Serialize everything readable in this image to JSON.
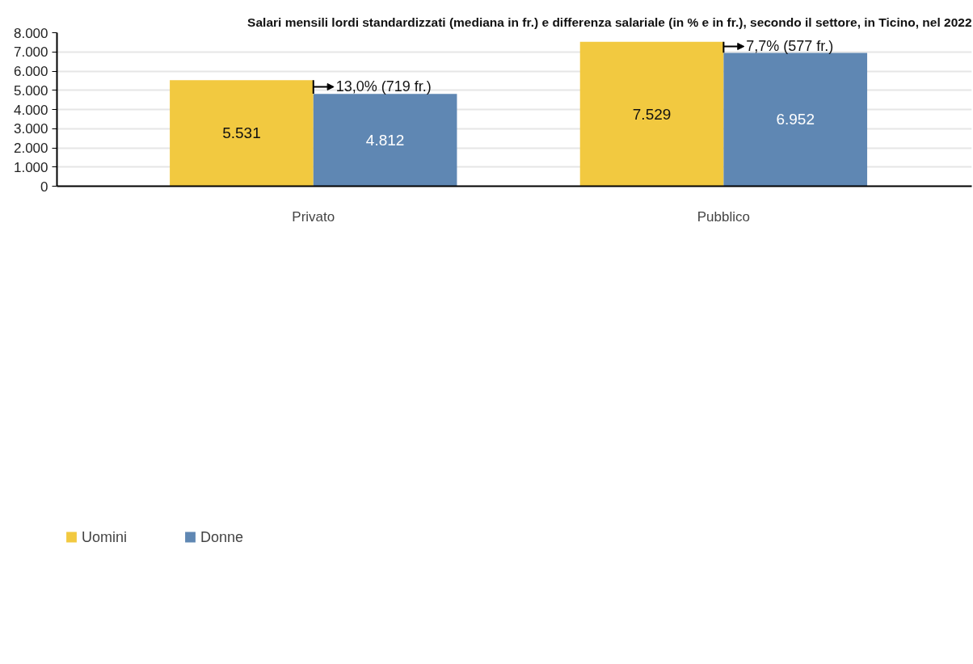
{
  "chart_data": {
    "type": "bar",
    "title": "Salari mensili lordi standardizzati (mediana in fr.) e differenza salariale (in % e in fr.), secondo il settore, in Ticino, nel 2022",
    "categories": [
      "Privato",
      "Pubblico"
    ],
    "series": [
      {
        "name": "Uomini",
        "color": "#f2c940",
        "values": [
          5531,
          7529
        ],
        "value_labels": [
          "5.531",
          "7.529"
        ]
      },
      {
        "name": "Donne",
        "color": "#5f87b3",
        "values": [
          4812,
          6952
        ],
        "value_labels": [
          "4.812",
          "6.952"
        ]
      }
    ],
    "ylim": [
      0,
      8000
    ],
    "yticks": [
      0,
      {
        "value": 1000,
        "label": "1.000"
      },
      {
        "value": 2000,
        "label": "2.000"
      },
      {
        "value": 3000,
        "label": "3.000"
      },
      {
        "value": 4000,
        "label": "4.000"
      },
      {
        "value": 5000,
        "label": "5.000"
      },
      {
        "value": 6000,
        "label": "6.000"
      },
      {
        "value": 7000,
        "label": "7.000"
      },
      {
        "value": 8000,
        "label": "8.000"
      }
    ],
    "annotations": [
      {
        "text": "13,0% (719 fr.)",
        "x": "Privato",
        "y": 5180
      },
      {
        "text": "7,7% (577 fr.)",
        "x": "Pubblico",
        "y": 7285
      }
    ],
    "grid": "y",
    "legend": "bottom left"
  }
}
